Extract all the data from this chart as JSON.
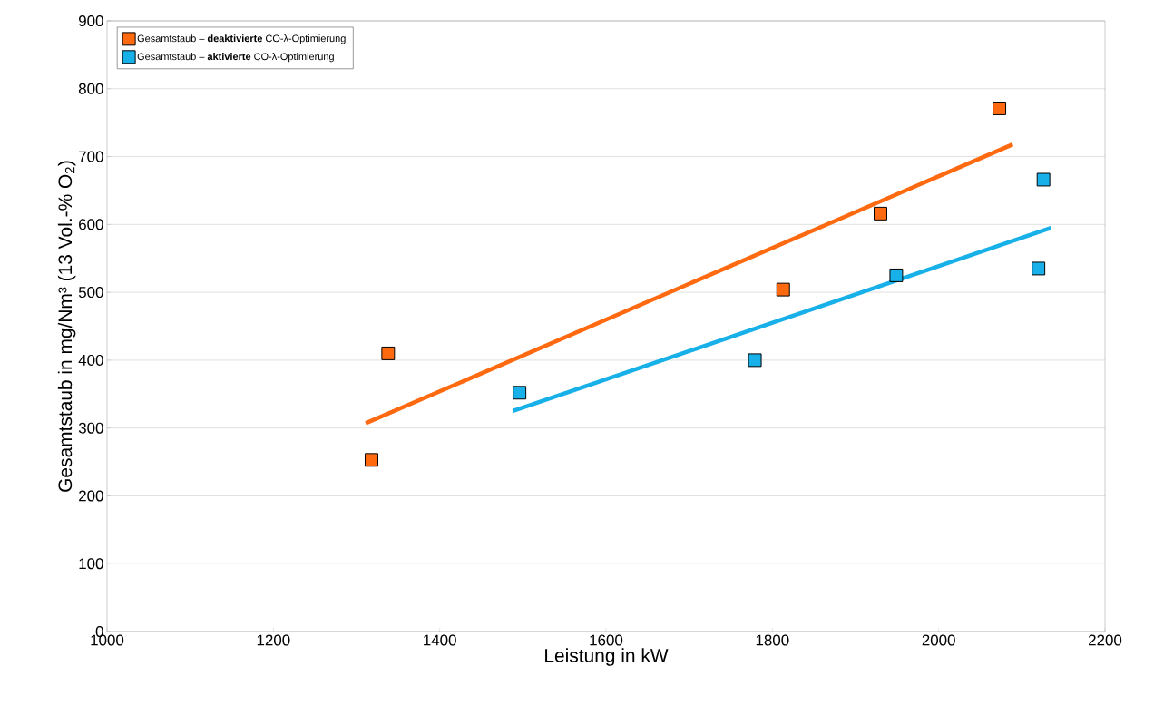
{
  "chart_data": {
    "type": "scatter",
    "xlabel": "Leistung in kW",
    "ylabel": "Gesamtstaub in mg/Nm³ (13 Vol.-% O$_{2}$)",
    "xlim": [
      1000,
      2200
    ],
    "ylim": [
      0,
      900
    ],
    "xticks": [
      1000,
      1200,
      1400,
      1600,
      1800,
      2000,
      2200
    ],
    "yticks": [
      0,
      100,
      200,
      300,
      400,
      500,
      600,
      700,
      800,
      900
    ],
    "grid": "y",
    "legend": "top left",
    "marker": "square",
    "series": [
      {
        "name": "Gesamtstaub – **deaktivierte** CO-λ-Optimierung",
        "color": "#ff6a10",
        "x": [
          1318,
          1338,
          1813,
          1930,
          2073
        ],
        "values": [
          253,
          410,
          504,
          616,
          771
        ]
      },
      {
        "name": "Gesamtstaub – **aktivierte** CO-λ-Optimierung",
        "color": "#18b0e8",
        "x": [
          1496,
          1779,
          1949,
          2120,
          2126
        ],
        "values": [
          352,
          400,
          525,
          535,
          666
        ]
      },
      {
        "type": "line",
        "marker": "none",
        "line_style": "solid",
        "color": "#ff6a10",
        "x": [
          1311,
          2089
        ],
        "values": [
          307,
          718
        ]
      },
      {
        "type": "line",
        "marker": "none",
        "line_style": "solid",
        "color": "#18b0e8",
        "x": [
          1488,
          2135
        ],
        "values": [
          325,
          595
        ]
      }
    ]
  }
}
